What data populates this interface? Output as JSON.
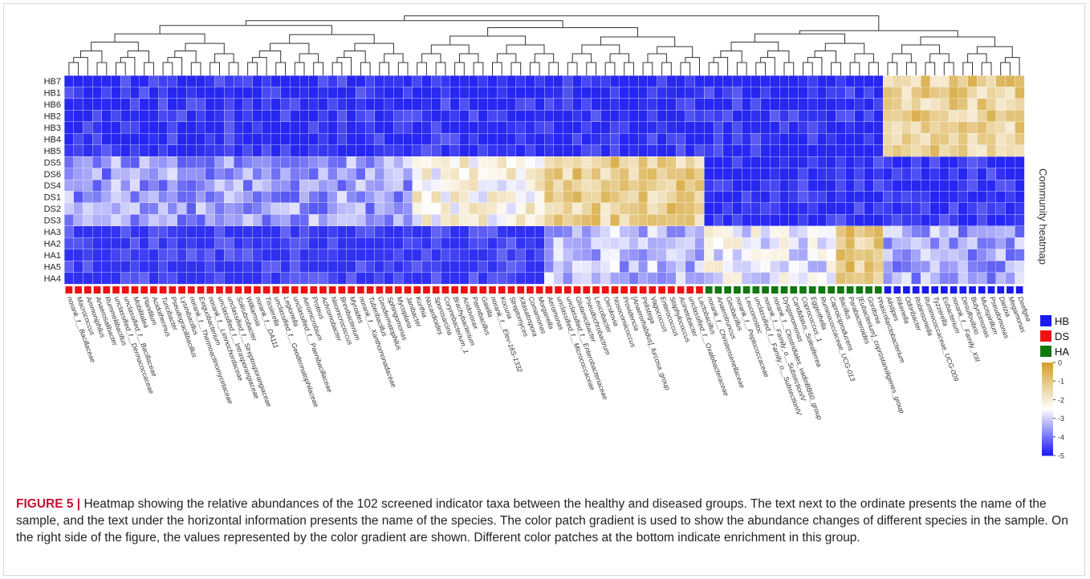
{
  "figure": {
    "label": "FIGURE 5 |",
    "caption": "Heatmap showing the relative abundances of the 102 screened indicator taxa between the healthy and diseased groups. The text next to the ordinate presents the name of the sample, and the text under the horizontal information presents the name of the species. The color patch gradient is used to show the abundance changes of different species in the sample. On the right side of the figure, the values represented by the color gradient are shown. Different color patches at the bottom indicate enrichment in this group."
  },
  "colors": {
    "low": "#1e1ef0",
    "mid": "#ffffff",
    "high": "#d4a22e",
    "HB": "#1a1aee",
    "DS": "#ee1111",
    "HA": "#117711"
  },
  "chart_data": {
    "type": "heatmap",
    "title": "Community heatmap",
    "rows": [
      "HB7",
      "HB1",
      "HB6",
      "HB2",
      "HB3",
      "HB4",
      "HB5",
      "DS5",
      "DS6",
      "DS4",
      "DS1",
      "DS2",
      "DS3",
      "HA3",
      "HA2",
      "HA1",
      "HA5",
      "HA4"
    ],
    "row_groups": [
      "HB",
      "HB",
      "HB",
      "HB",
      "HB",
      "HB",
      "HB",
      "DS",
      "DS",
      "DS",
      "DS",
      "DS",
      "DS",
      "HA",
      "HA",
      "HA",
      "HA",
      "HA"
    ],
    "columns": [
      "norank_f__Bacillaceae",
      "Macrococcus",
      "Ammoniphilus",
      "Anaerosalibacter",
      "Rummeliibacillus",
      "unclassified_f__Dermacoccaceae",
      "unclassified_f__Bacillaceae",
      "Mobilitalea",
      "Planifilum",
      "Acidothermus",
      "Turicibacter",
      "Pseudogracilibacillus",
      "Lysinibacillus",
      "norank_f__Thermoactinomycetaceae",
      "Exiguobacterium",
      "norank_f__Limnochordaceae",
      "unclassified_f__Intrasporangiaceae",
      "unclassified_f__Streptosporangiaceae",
      "Solirubrobacter",
      "Williamsia",
      "norank_f__DA111",
      "Tissierella",
      "unclassified_f__Geodermatophilaceae",
      "Legionella",
      "unclassified_f__Paenibacillaceae",
      "Aeromicrobium",
      "Proteus",
      "Achromobacter",
      "Neomicrococcus",
      "Brevibacterium",
      "Myroides",
      "norank_f__Xanthomonadaceae",
      "Tuberibacillus",
      "Geodermatophilus",
      "Sphingomonas",
      "Mycoplana",
      "Janibacter",
      "Kurthia",
      "Nocardioides",
      "Sporosarcina",
      "Corynebacterium_1",
      "Brachybacterium",
      "Acidovorax",
      "Paenibacillus",
      "Gaiella",
      "norank_f__Elev-16S-1332",
      "Kocuria",
      "Streptomyces",
      "Kitasatospora",
      "Comamonas",
      "Morganella",
      "Aeromonas",
      "unclassified_f__Micrococcaceae",
      "unclassified_f__Enterobacteriaceae",
      "Glutamicibacter",
      "Pseudochrobactrum",
      "Leucobacter",
      "Oerskovia",
      "Nosocomiicoccus",
      "Providencia",
      "[Anaerorhabdus]_furcosa_group",
      "Pelistega",
      "Vagococcus",
      "Enterococcus",
      "Staphylococcus",
      "Acinetobacter",
      "unclassified_f__Oxalobacteraceae",
      "Lactobacillus",
      "norank_f__Christensenellaceae",
      "Anaerotruncus",
      "Geobacillus",
      "norank_f__Peptococcaceae",
      "Leuconostoc",
      "unclassified_f__Family_o__SubsectionIV",
      "norank_f__Family_o__SubsectionIV",
      "norank_f__Clostridiales_vadinBB60_group",
      "Dysgonomonas",
      "Candidatus_Soleaferrea",
      "Coprococcus_1",
      "Eggerthella",
      "Ruminococcaceae_UCG-013",
      "Caproiciproducens",
      "Bacillus",
      "Parabacteroides",
      "[Eubacterium]_coprostanoligenes_group",
      "Gordonia",
      "Phascolarctobacterium",
      "Alistipes",
      "Rikenella",
      "Odoribacter",
      "Robinsoniella",
      "Ruminococcaceae_UCG-009",
      "Tyzzerella",
      "Eubacterium",
      "norank_f__Family_XIII",
      "Desulfovibrio",
      "Butyricimonas",
      "Mucispirillum",
      "Pseudomonas",
      "Dietzia",
      "Megamonas",
      "Deefgea"
    ],
    "column_groups_counts": [
      {
        "group": "DS",
        "count": 68
      },
      {
        "group": "HA",
        "count": 19
      },
      {
        "group": "HB",
        "count": 15
      }
    ],
    "legend": {
      "groups": [
        "HB",
        "DS",
        "HA"
      ],
      "colorbar_ticks": [
        "0",
        "-1",
        "-2",
        "-3",
        "-4",
        "-5"
      ],
      "range": [
        -5,
        0
      ]
    },
    "value_blocks": [
      {
        "rows": [
          0,
          6
        ],
        "cols": [
          0,
          86
        ],
        "value": -4.9
      },
      {
        "rows": [
          0,
          6
        ],
        "cols": [
          87,
          101
        ],
        "value": -1.2
      },
      {
        "rows": [
          7,
          12
        ],
        "cols": [
          0,
          36
        ],
        "value": -3.6
      },
      {
        "rows": [
          7,
          12
        ],
        "cols": [
          37,
          50
        ],
        "value": -2.3
      },
      {
        "rows": [
          7,
          12
        ],
        "cols": [
          51,
          67
        ],
        "value": -1.2
      },
      {
        "rows": [
          7,
          12
        ],
        "cols": [
          68,
          101
        ],
        "value": -4.9
      },
      {
        "rows": [
          13,
          17
        ],
        "cols": [
          0,
          50
        ],
        "value": -4.8
      },
      {
        "rows": [
          13,
          17
        ],
        "cols": [
          51,
          67
        ],
        "value": -3.3
      },
      {
        "rows": [
          13,
          17
        ],
        "cols": [
          68,
          81
        ],
        "value": -2.7
      },
      {
        "rows": [
          13,
          17
        ],
        "cols": [
          82,
          86
        ],
        "value": -1.0
      },
      {
        "rows": [
          13,
          17
        ],
        "cols": [
          87,
          101
        ],
        "value": -3.5
      }
    ]
  }
}
